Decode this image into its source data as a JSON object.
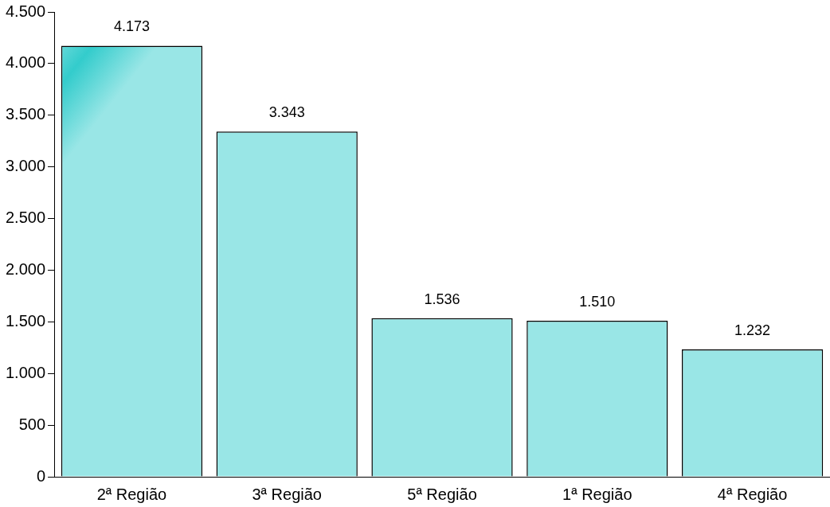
{
  "chart_data": {
    "type": "bar",
    "categories": [
      "2ª Região",
      "3ª Região",
      "5ª Região",
      "1ª Região",
      "4ª Região"
    ],
    "values": [
      4173,
      3343,
      1536,
      1510,
      1232
    ],
    "value_labels": [
      "4.173",
      "3.343",
      "1.536",
      "1.510",
      "1.232"
    ],
    "color": "#33cccc",
    "ylim": [
      0,
      4500
    ],
    "yticks": [
      {
        "value": 0,
        "label": "0"
      },
      {
        "value": 500,
        "label": "500"
      },
      {
        "value": 1000,
        "label": "1.000"
      },
      {
        "value": 1500,
        "label": "1.500"
      },
      {
        "value": 2000,
        "label": "2.000"
      },
      {
        "value": 2500,
        "label": "2.500"
      },
      {
        "value": 3000,
        "label": "3.000"
      },
      {
        "value": 3500,
        "label": "3.500"
      },
      {
        "value": 4000,
        "label": "4.000"
      },
      {
        "value": 4500,
        "label": "4.500"
      }
    ],
    "grid": false,
    "legend": false
  }
}
